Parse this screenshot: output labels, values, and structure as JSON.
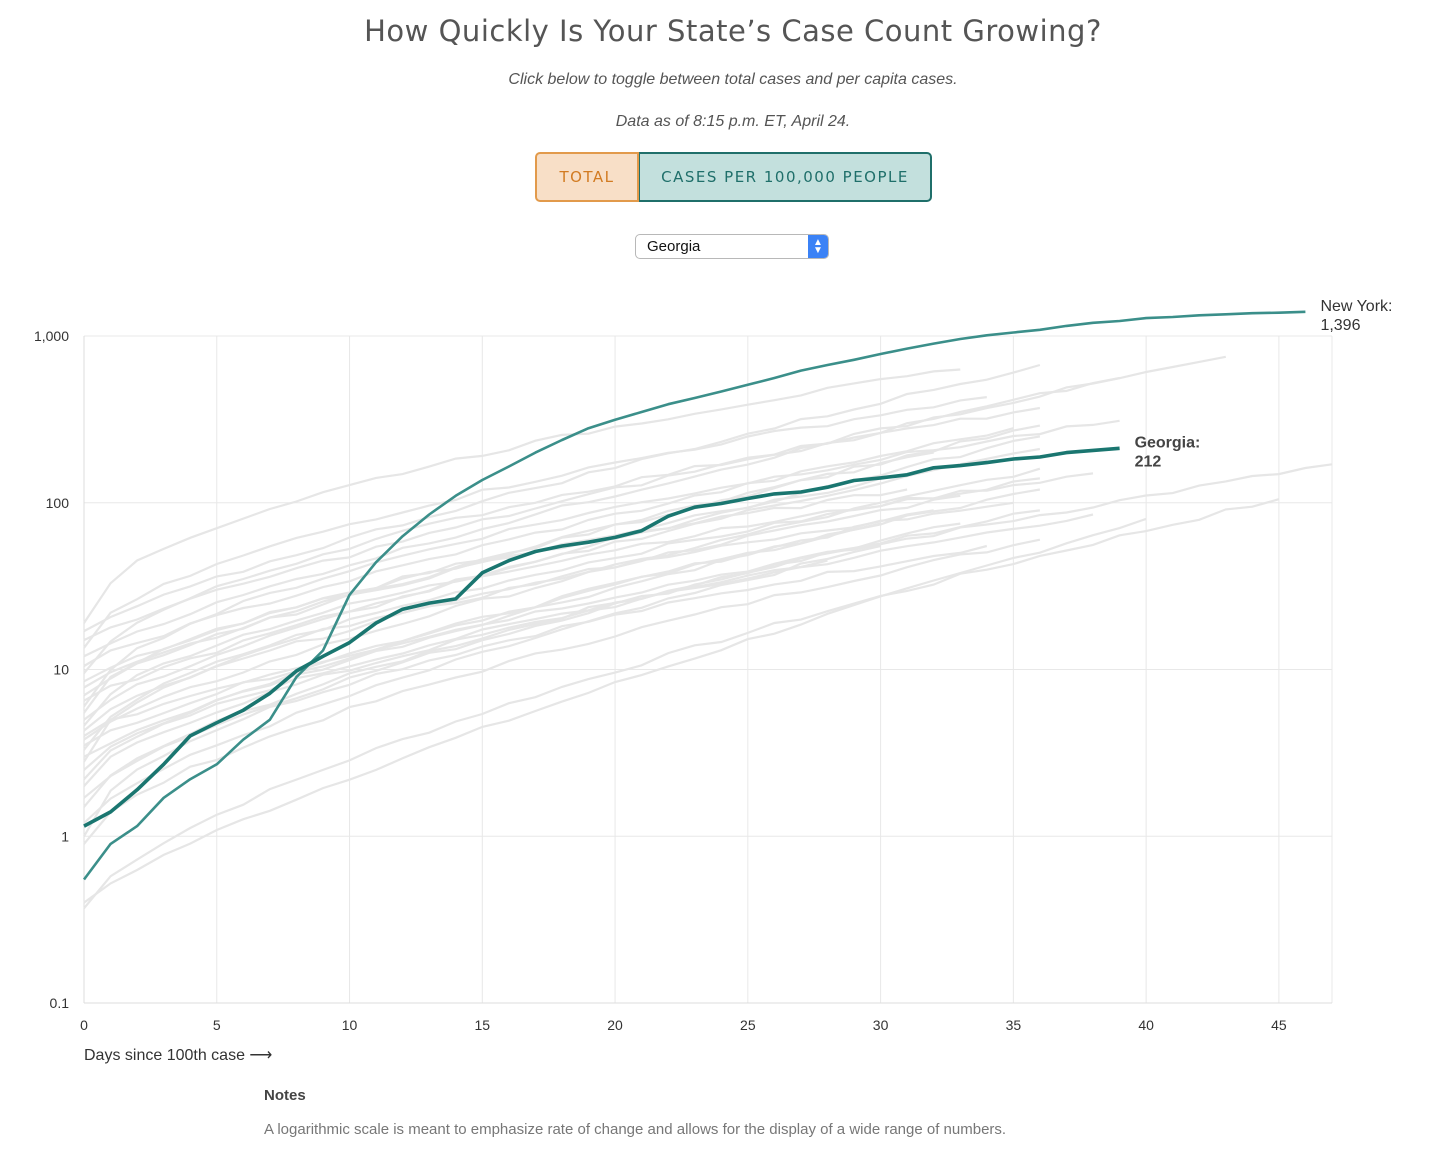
{
  "header": {
    "title": "How Quickly Is Your State’s Case Count Growing?",
    "instruction": "Click below to toggle between total cases and per capita cases.",
    "data_as_of": "Data as of 8:15 p.m. ET, April 24."
  },
  "toggle": {
    "total_label": "TOTAL",
    "per_capita_label": "CASES PER 100,000 PEOPLE",
    "selected": "CASES PER 100,000 PEOPLE"
  },
  "state_select": {
    "value": "Georgia"
  },
  "colors": {
    "highlight": "#1a7670",
    "new_york": "#3b8f8a",
    "background_lines": "#e6e6e6",
    "total_accent": "#d27b22"
  },
  "chart_data": {
    "type": "line",
    "xlabel": "Days since 100th case ⟶",
    "ylabel": "",
    "xlim": [
      0,
      47
    ],
    "ylim": [
      0.1,
      1000
    ],
    "y_scale": "log",
    "x_ticks": [
      0,
      5,
      10,
      15,
      20,
      25,
      30,
      35,
      40,
      45
    ],
    "y_ticks": [
      0.1,
      1,
      10,
      100,
      1000
    ],
    "y_tick_labels": [
      "0.1",
      "1",
      "10",
      "100",
      "1,000"
    ],
    "grid": true,
    "series": [
      {
        "name": "New York",
        "label_lines": [
          "New York:",
          "1,396"
        ],
        "x": [
          0,
          1,
          2,
          3,
          4,
          5,
          6,
          7,
          8,
          9,
          10,
          11,
          12,
          13,
          14,
          15,
          16,
          17,
          18,
          19,
          20,
          21,
          22,
          23,
          24,
          25,
          26,
          27,
          28,
          29,
          30,
          31,
          32,
          33,
          34,
          35,
          36,
          37,
          38,
          39,
          40,
          41,
          42,
          43,
          44,
          45,
          46
        ],
        "y": [
          0.55,
          0.9,
          1.15,
          1.7,
          2.2,
          2.7,
          3.8,
          5,
          9,
          13,
          28,
          44,
          63,
          85,
          110,
          137,
          165,
          200,
          238,
          280,
          315,
          350,
          390,
          425,
          465,
          510,
          560,
          620,
          670,
          720,
          780,
          840,
          900,
          960,
          1010,
          1050,
          1090,
          1150,
          1200,
          1230,
          1280,
          1300,
          1330,
          1350,
          1370,
          1380,
          1396
        ]
      },
      {
        "name": "Georgia",
        "label_lines": [
          "Georgia:",
          "212"
        ],
        "x": [
          0,
          1,
          2,
          3,
          4,
          5,
          6,
          7,
          8,
          9,
          10,
          11,
          12,
          13,
          14,
          15,
          16,
          17,
          18,
          19,
          20,
          21,
          22,
          23,
          24,
          25,
          26,
          27,
          28,
          29,
          30,
          31,
          32,
          33,
          34,
          35,
          36,
          37,
          38,
          39
        ],
        "y": [
          1.15,
          1.4,
          1.9,
          2.7,
          4,
          4.8,
          5.7,
          7.2,
          9.8,
          12,
          14.5,
          19,
          23,
          25,
          26.5,
          38,
          45,
          51,
          55,
          58,
          62,
          68,
          83,
          94,
          99,
          106,
          113,
          116,
          124,
          136,
          141,
          147,
          162,
          167,
          174,
          183,
          188,
          200,
          206,
          212
        ]
      }
    ],
    "background_series": [
      {
        "y0": 0.37,
        "end_x": 45,
        "end_y": 105
      },
      {
        "y0": 0.4,
        "end_x": 40,
        "end_y": 80
      },
      {
        "y0": 0.9,
        "end_x": 36,
        "end_y": 60
      },
      {
        "y0": 1.0,
        "end_x": 34,
        "end_y": 55
      },
      {
        "y0": 1.2,
        "end_x": 30,
        "end_y": 55
      },
      {
        "y0": 1.5,
        "end_x": 36,
        "end_y": 90
      },
      {
        "y0": 1.7,
        "end_x": 33,
        "end_y": 75
      },
      {
        "y0": 2.0,
        "end_x": 38,
        "end_y": 85
      },
      {
        "y0": 2.2,
        "end_x": 28,
        "end_y": 45
      },
      {
        "y0": 2.5,
        "end_x": 36,
        "end_y": 120
      },
      {
        "y0": 2.8,
        "end_x": 35,
        "end_y": 100
      },
      {
        "y0": 3.0,
        "end_x": 32,
        "end_y": 90
      },
      {
        "y0": 3.3,
        "end_x": 36,
        "end_y": 140
      },
      {
        "y0": 3.5,
        "end_x": 30,
        "end_y": 75
      },
      {
        "y0": 3.8,
        "end_x": 36,
        "end_y": 160
      },
      {
        "y0": 4.0,
        "end_x": 47,
        "end_y": 170
      },
      {
        "y0": 4.3,
        "end_x": 33,
        "end_y": 110
      },
      {
        "y0": 4.6,
        "end_x": 38,
        "end_y": 150
      },
      {
        "y0": 5.0,
        "end_x": 36,
        "end_y": 210
      },
      {
        "y0": 5.5,
        "end_x": 31,
        "end_y": 120
      },
      {
        "y0": 6.0,
        "end_x": 39,
        "end_y": 310
      },
      {
        "y0": 6.5,
        "end_x": 36,
        "end_y": 250
      },
      {
        "y0": 7.0,
        "end_x": 34,
        "end_y": 180
      },
      {
        "y0": 7.8,
        "end_x": 36,
        "end_y": 290
      },
      {
        "y0": 8.5,
        "end_x": 32,
        "end_y": 200
      },
      {
        "y0": 9.5,
        "end_x": 36,
        "end_y": 370
      },
      {
        "y0": 10.5,
        "end_x": 35,
        "end_y": 280
      },
      {
        "y0": 12.0,
        "end_x": 39,
        "end_y": 560
      },
      {
        "y0": 13.5,
        "end_x": 34,
        "end_y": 430
      },
      {
        "y0": 15.0,
        "end_x": 43,
        "end_y": 750
      },
      {
        "y0": 17.0,
        "end_x": 36,
        "end_y": 670
      },
      {
        "y0": 19.0,
        "end_x": 33,
        "end_y": 630
      }
    ]
  },
  "notes": {
    "heading": "Notes",
    "text": "A logarithmic scale is meant to emphasize rate of change and allows for the display of a wide range of numbers."
  }
}
